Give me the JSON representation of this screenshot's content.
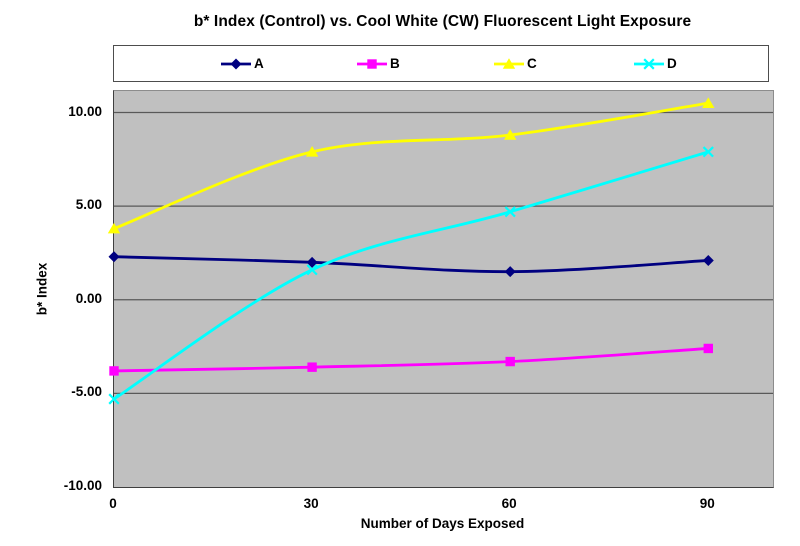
{
  "chart_data": {
    "type": "line",
    "title": "b* Index (Control) vs. Cool White (CW) Fluorescent Light Exposure",
    "xlabel": "Number of Days Exposed",
    "ylabel": "b* Index",
    "x": [
      0,
      30,
      60,
      90
    ],
    "x_tick_labels": [
      "0",
      "30",
      "60",
      "90"
    ],
    "y_ticks": [
      10,
      5,
      0,
      -5,
      -10
    ],
    "y_tick_labels": [
      "10.00",
      "5.00",
      "0.00",
      "-5.00",
      "-10.00"
    ],
    "xlim": [
      0,
      99.8
    ],
    "ylim": [
      -10,
      11.15
    ],
    "grid": "horizontal-major",
    "legend_position": "top",
    "smoothed_lines": true,
    "colors": {
      "plot_background": "#c0c0c0",
      "gridline": "#595959",
      "axis_line": "#3f3f3f",
      "text": "#000000"
    },
    "series": [
      {
        "name": "A",
        "color": "#000080",
        "marker": "diamond",
        "values": [
          2.3,
          2.0,
          1.5,
          2.1
        ]
      },
      {
        "name": "B",
        "color": "#ff00ff",
        "marker": "square",
        "values": [
          -3.8,
          -3.6,
          -3.3,
          -2.6
        ]
      },
      {
        "name": "C",
        "color": "#ffff00",
        "marker": "triangle",
        "values": [
          3.8,
          7.9,
          8.8,
          10.5
        ]
      },
      {
        "name": "D",
        "color": "#00ffff",
        "marker": "x",
        "values": [
          -5.3,
          1.6,
          4.7,
          7.9
        ]
      }
    ]
  }
}
